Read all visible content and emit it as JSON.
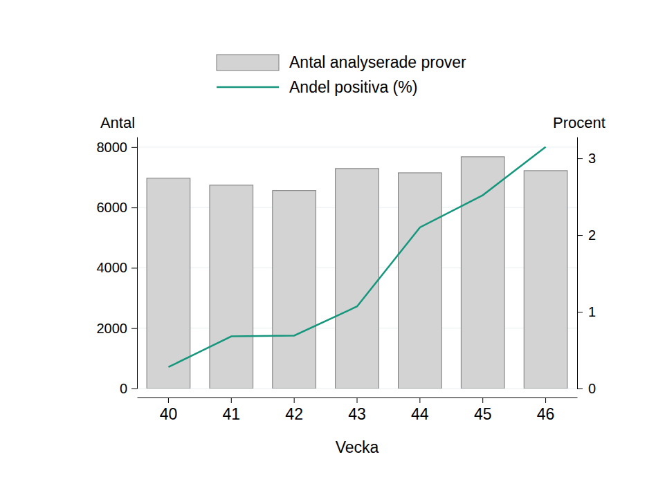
{
  "chart_data": {
    "type": "bar",
    "categories": [
      "40",
      "41",
      "42",
      "43",
      "44",
      "45",
      "46"
    ],
    "x_label": "Vecka",
    "y_label": "Antal",
    "y2_label": "Procent",
    "series": [
      {
        "name": "Antal analyserade prover",
        "type": "bar",
        "color": "#d3d3d3",
        "values": [
          6970,
          6740,
          6560,
          7290,
          7150,
          7680,
          7220
        ]
      },
      {
        "name": "Andel positiva (%)",
        "type": "line",
        "color": "#16977d",
        "axis": "y2",
        "values": [
          0.28,
          0.68,
          0.69,
          1.07,
          2.1,
          2.52,
          3.15
        ]
      }
    ],
    "ylim": [
      0,
      8340
    ],
    "yticks": [
      0,
      2000,
      4000,
      6000,
      8000
    ],
    "y2lim": [
      0,
      3.28
    ],
    "y2ticks": [
      0,
      1,
      2,
      3
    ],
    "grid": true,
    "legend": "top"
  }
}
